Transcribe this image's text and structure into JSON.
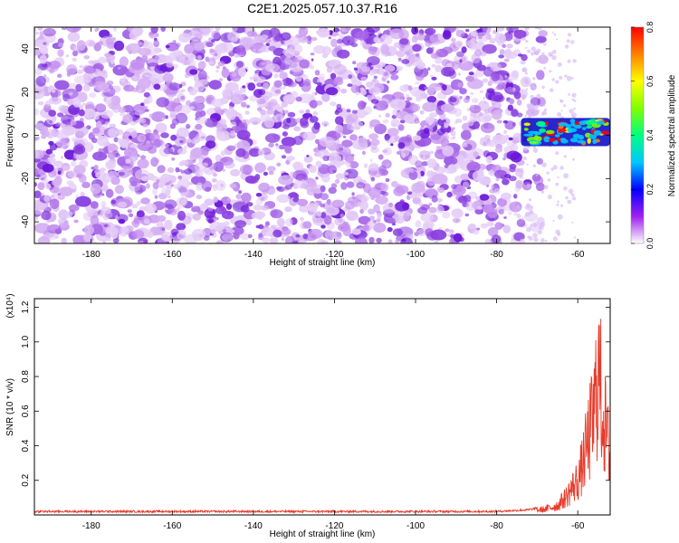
{
  "title": "C2E1.2025.057.10.37.R16",
  "colorbar": {
    "label": "Normalized spectral amplitude",
    "min": 0.0,
    "max": 0.8,
    "ticks": [
      "0.0",
      "0.2",
      "0.4",
      "0.6",
      "0.8"
    ],
    "colors": [
      "#ffffff",
      "#a020f0",
      "#0000ff",
      "#00c8ff",
      "#00ff80",
      "#7fff00",
      "#ffff00",
      "#ff8000",
      "#ff0000"
    ]
  },
  "chart_data": [
    {
      "type": "heatmap",
      "title": "C2E1.2025.057.10.37.R16",
      "xlabel": "Height of straight line (km)",
      "ylabel": "Frequency (Hz)",
      "xlim": [
        -194,
        -52
      ],
      "ylim": [
        -50,
        50
      ],
      "xticks": [
        "-180",
        "-160",
        "-140",
        "-120",
        "-100",
        "-80",
        "-60"
      ],
      "yticks": [
        "40",
        "20",
        "0",
        "-20",
        "-40"
      ],
      "value_label": "Normalized spectral amplitude",
      "description_values": {
        "background_amplitude_range": [
          0.0,
          0.1
        ],
        "signal_region_x": [
          -74,
          -52
        ],
        "signal_region_y": [
          -5,
          8
        ],
        "signal_peak_amplitude": 0.8
      }
    },
    {
      "type": "line",
      "title": "",
      "xlabel": "Height of straight line (km)",
      "ylabel": "SNR (10 * v/v)",
      "scale_label": "(x10⁴)",
      "xlim": [
        -194,
        -52
      ],
      "ylim": [
        0,
        1.25
      ],
      "xticks": [
        "-180",
        "-160",
        "-140",
        "-120",
        "-100",
        "-80",
        "-60"
      ],
      "yticks": [
        "0.2",
        "0.4",
        "0.6",
        "0.8",
        "1.0",
        "1.2"
      ],
      "color": "#e83a2a",
      "series": [
        {
          "x": [
            -194,
            -180,
            -160,
            -140,
            -120,
            -100,
            -80,
            -72,
            -68,
            -65,
            -63,
            -61,
            -60,
            -59,
            -58,
            -57,
            -56,
            -55,
            -54.5,
            -54,
            -53,
            -52
          ],
          "y": [
            0.02,
            0.02,
            0.02,
            0.02,
            0.02,
            0.02,
            0.02,
            0.03,
            0.05,
            0.08,
            0.15,
            0.25,
            0.3,
            0.4,
            0.55,
            0.7,
            0.85,
            1.25,
            1.1,
            0.95,
            0.7,
            0.5
          ]
        }
      ]
    }
  ]
}
